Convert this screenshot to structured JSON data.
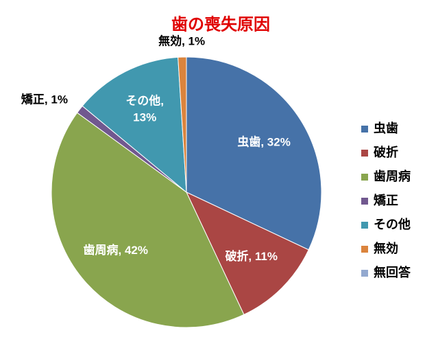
{
  "chart_data": {
    "type": "pie",
    "title": "歯の喪失原因",
    "categories": [
      "虫歯",
      "破折",
      "歯周病",
      "矯正",
      "その他",
      "無効",
      "無回答"
    ],
    "values": [
      32,
      11,
      42,
      1,
      13,
      1,
      0
    ],
    "value_labels": [
      "虫歯, 32%",
      "破折, 11%",
      "歯周病, 42%",
      "矯正, 1%",
      "その他,\n13%",
      "無効, 1%",
      null
    ],
    "colors": [
      "#4672a8",
      "#aa4644",
      "#89a54e",
      "#71588f",
      "#4198af",
      "#db843d",
      "#93a9cf"
    ],
    "legend": "right"
  }
}
